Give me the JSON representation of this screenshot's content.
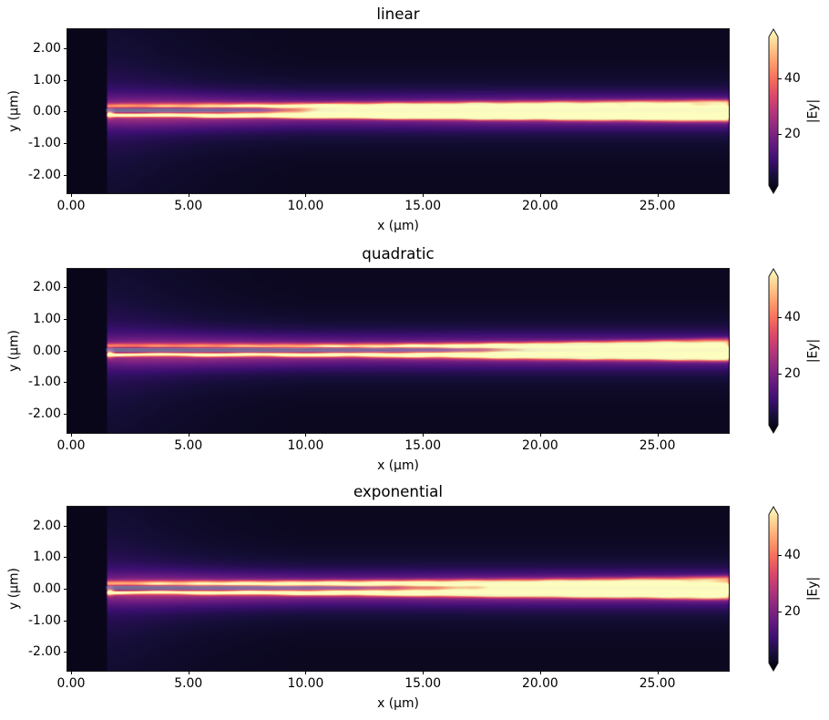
{
  "figure": {
    "background": "#ffffff",
    "kind": "matplotlib-style figure, 3 stacked heatmap subplots with individual colorbars"
  },
  "chart_data": {
    "type": "heatmap",
    "description": "Simulated optical field magnitude |Ey| in a tapered waveguide for three taper profiles; bright beam propagates along y=0 from a source at x=1.5 um; dark column left of the source; semi-transparent grey waveguide-core overlay around y=0.",
    "colormap": {
      "name": "magma",
      "stops": [
        [
          0.0,
          "#000004"
        ],
        [
          0.1,
          "#140e36"
        ],
        [
          0.2,
          "#3b0f70"
        ],
        [
          0.3,
          "#641a80"
        ],
        [
          0.4,
          "#8c2981"
        ],
        [
          0.5,
          "#b73779"
        ],
        [
          0.6,
          "#de4968"
        ],
        [
          0.7,
          "#f76f5c"
        ],
        [
          0.8,
          "#fe9f6d"
        ],
        [
          0.9,
          "#fece91"
        ],
        [
          1.0,
          "#fcfdbf"
        ]
      ]
    },
    "x_axis": {
      "label": "x (µm)",
      "range": [
        -0.1554,
        28.0446
      ],
      "ticks": [
        {
          "value": 0,
          "label": "0.00"
        },
        {
          "value": 5,
          "label": "5.00"
        },
        {
          "value": 10,
          "label": "10.00"
        },
        {
          "value": 15,
          "label": "15.00"
        },
        {
          "value": 20,
          "label": "20.00"
        },
        {
          "value": 25,
          "label": "25.00"
        }
      ]
    },
    "y_axis": {
      "label": "y (µm)",
      "range": [
        -2.6,
        2.6
      ],
      "ticks": [
        {
          "value": 2,
          "label": "2.00"
        },
        {
          "value": 1,
          "label": "1.00"
        },
        {
          "value": 0,
          "label": "0.00"
        },
        {
          "value": -1,
          "label": "-1.00"
        },
        {
          "value": -2,
          "label": "-2.00"
        }
      ]
    },
    "colorbar": {
      "label": "|Ey|",
      "vmin": 1.7,
      "vmax": 54.5,
      "extend": "both",
      "ticks": [
        {
          "value": 20,
          "label": "20"
        },
        {
          "value": 40,
          "label": "40"
        }
      ]
    },
    "field_common": {
      "source_x_um": 1.5,
      "background_level_left": 0.045,
      "background_level_right": 0.055,
      "overlay": {
        "color": "#b4b4c8",
        "y_center": 0.033,
        "y_halfwidth": 0.056,
        "edge": 0.02
      },
      "xs": [
        1.5,
        2.5,
        4,
        6,
        8,
        10,
        12,
        14,
        16,
        18,
        20,
        22,
        24,
        26,
        28
      ]
    },
    "subplots": [
      {
        "title": "linear",
        "field": {
          "bands": [
            {
              "name": "core",
              "y": -0.02,
              "sy": 0.12,
              "sy28": 0.2,
              "p": 3,
              "amp": [
                0.18,
                0.22,
                0.3,
                0.42,
                0.56,
                0.72,
                0.82,
                0.9,
                0.94,
                0.95,
                0.95,
                0.95,
                0.95,
                0.95,
                0.95
              ],
              "ripple": [
                1.7,
                0.07,
                0.0
              ]
            },
            {
              "name": "edge-top",
              "y": 0.11,
              "y1": 0.27,
              "ypow": 1,
              "sy": 0.026,
              "sy28": 0.045,
              "amp": [
                0.14,
                0.13,
                0.18,
                0.3,
                0.4,
                0.46,
                0.46,
                0.42,
                0.38,
                0.34,
                0.3,
                0.28,
                0.26,
                0.25,
                0.24
              ],
              "ripple": [
                1.7,
                0.1,
                0.4
              ],
              "wobble": [
                3.3,
                0.012,
                0.0
              ]
            },
            {
              "name": "band-top",
              "y": 0.155,
              "y1": 0.32,
              "ypow": 1,
              "sy": 0.055,
              "sy28": 0.06,
              "amp": [
                0.38,
                0.4,
                0.36,
                0.4,
                0.36,
                0.34,
                0.3,
                0.27,
                0.24,
                0.22,
                0.21,
                0.2,
                0.2,
                0.19,
                0.18
              ],
              "ripple": [
                1.9,
                0.09,
                0.9
              ]
            },
            {
              "name": "stripe-bottom",
              "y": -0.115,
              "y1": -0.27,
              "ypow": 1,
              "sy": 0.034,
              "sy28": 0.05,
              "amp": [
                0.75,
                0.72,
                0.65,
                0.68,
                0.6,
                0.55,
                0.5,
                0.44,
                0.4,
                0.35,
                0.31,
                0.28,
                0.26,
                0.25,
                0.24
              ],
              "ripple": [
                1.9,
                0.1,
                1.2
              ],
              "wobble": [
                3.9,
                0.012,
                1.0
              ]
            },
            {
              "name": "pedestal",
              "y": -0.02,
              "sy": 0.32,
              "amp": [
                0.28,
                0.31,
                0.32,
                0.31,
                0.29,
                0.27,
                0.28,
                0.29,
                0.31,
                0.32,
                0.33,
                0.33,
                0.33,
                0.33,
                0.33
              ]
            },
            {
              "name": "halo",
              "y": 0,
              "sy": 0.7,
              "amp": [
                0.08,
                0.09,
                0.1,
                0.1,
                0.1,
                0.1,
                0.1,
                0.1,
                0.1,
                0.1,
                0.1,
                0.1,
                0.1,
                0.1,
                0.1
              ]
            },
            {
              "name": "source-fan",
              "y": 0,
              "sy": 2.2,
              "amp": [
                0.07,
                0.06,
                0.04,
                0.02,
                0.008,
                0,
                0,
                0,
                0,
                0,
                0,
                0,
                0,
                0,
                0
              ]
            }
          ],
          "dip": {
            "y": 0.035,
            "sy": 0.065,
            "depth": [
              0.96,
              0.95,
              0.93,
              0.9,
              0.7,
              0.25,
              0.04,
              0,
              0,
              0,
              0,
              0,
              0,
              0,
              0
            ]
          },
          "overlay_alpha": [
            0.58,
            0.58,
            0.58,
            0.543,
            0.393,
            0.14,
            0.047,
            0.037,
            0.037,
            0.037,
            0.037,
            0.037,
            0.037,
            0.037,
            0.037
          ],
          "source_spot": {
            "x": 1.64,
            "sx": 0.12,
            "y": -0.07,
            "sy": 0.09,
            "amp": 0.5
          },
          "side_overlay": {
            "alpha": 0.13,
            "hw": 0.032,
            "edge": 0.02,
            "onset": [
              11,
              17
            ]
          }
        }
      },
      {
        "title": "quadratic",
        "field": {
          "bands": [
            {
              "name": "core",
              "y": -0.02,
              "sy": 0.12,
              "sy28": 0.2,
              "p": 3,
              "amp": [
                0.15,
                0.17,
                0.2,
                0.23,
                0.27,
                0.31,
                0.37,
                0.45,
                0.58,
                0.82,
                1.0,
                1.02,
                1.02,
                1.02,
                0.98
              ],
              "ripple": [
                1.8,
                0.07,
                0.3
              ]
            },
            {
              "name": "edge-top",
              "y": 0.11,
              "y1": 0.26,
              "ypow": 3.2,
              "sy": 0.026,
              "sy28": 0.045,
              "amp": [
                0.13,
                0.13,
                0.17,
                0.24,
                0.32,
                0.4,
                0.44,
                0.48,
                0.52,
                0.5,
                0.42,
                0.34,
                0.28,
                0.26,
                0.25
              ],
              "ripple": [
                1.6,
                0.1,
                0.8
              ],
              "wobble": [
                3.5,
                0.012,
                0.5
              ]
            },
            {
              "name": "band-top",
              "y": 0.155,
              "y1": 0.34,
              "ypow": 3.2,
              "sy": 0.055,
              "sy28": 0.06,
              "amp": [
                0.36,
                0.38,
                0.34,
                0.38,
                0.35,
                0.36,
                0.34,
                0.32,
                0.3,
                0.28,
                0.26,
                0.28,
                0.3,
                0.3,
                0.28
              ],
              "ripple": [
                1.8,
                0.09,
                1.5
              ]
            },
            {
              "name": "stripe-bottom",
              "y": -0.115,
              "y1": -0.26,
              "ypow": 3.2,
              "sy": 0.034,
              "sy28": 0.05,
              "amp": [
                0.68,
                0.7,
                0.62,
                0.68,
                0.62,
                0.66,
                0.62,
                0.66,
                0.64,
                0.6,
                0.52,
                0.42,
                0.33,
                0.3,
                0.28
              ],
              "ripple": [
                1.85,
                0.1,
                1.9
              ],
              "wobble": [
                4.0,
                0.012,
                1.6
              ]
            },
            {
              "name": "pedestal",
              "y": -0.02,
              "sy": 0.32,
              "amp": [
                0.24,
                0.28,
                0.3,
                0.31,
                0.3,
                0.29,
                0.27,
                0.28,
                0.29,
                0.3,
                0.3,
                0.3,
                0.3,
                0.3,
                0.3
              ]
            },
            {
              "name": "halo",
              "y": 0,
              "sy": 0.7,
              "amp": [
                0.08,
                0.09,
                0.1,
                0.1,
                0.1,
                0.1,
                0.1,
                0.1,
                0.1,
                0.1,
                0.1,
                0.1,
                0.1,
                0.1,
                0.1
              ]
            },
            {
              "name": "source-fan",
              "y": 0,
              "sy": 2.2,
              "amp": [
                0.07,
                0.06,
                0.04,
                0.02,
                0.008,
                0,
                0,
                0,
                0,
                0,
                0,
                0,
                0,
                0,
                0
              ]
            }
          ],
          "dip": {
            "y": 0.035,
            "sy": 0.065,
            "depth": [
              0.96,
              0.955,
              0.945,
              0.94,
              0.93,
              0.91,
              0.88,
              0.82,
              0.72,
              0.5,
              0.17,
              0.05,
              0.05,
              0.06,
              0.08
            ]
          },
          "overlay_alpha": [
            0.58,
            0.58,
            0.58,
            0.58,
            0.58,
            0.58,
            0.561,
            0.524,
            0.468,
            0.374,
            0.14,
            0.047,
            0.037,
            0.037,
            0.037
          ],
          "source_spot": {
            "x": 1.64,
            "sx": 0.12,
            "y": -0.07,
            "sy": 0.09,
            "amp": 0.5
          },
          "side_overlay": {
            "alpha": 0.13,
            "hw": 0.032,
            "edge": 0.02,
            "onset": [
              17,
              22
            ]
          }
        }
      },
      {
        "title": "exponential",
        "field": {
          "bands": [
            {
              "name": "core",
              "y": -0.02,
              "sy": 0.125,
              "sy28": 0.2,
              "p": 3,
              "amp": [
                0.17,
                0.21,
                0.27,
                0.35,
                0.44,
                0.52,
                0.6,
                0.68,
                0.76,
                0.84,
                0.9,
                0.93,
                0.94,
                0.94,
                0.94
              ],
              "ripple": [
                1.8,
                0.07,
                0.9
              ]
            },
            {
              "name": "edge-top",
              "y": 0.11,
              "y1": 0.28,
              "ypow": 2.0,
              "sy": 0.028,
              "sy28": 0.05,
              "amp": [
                0.14,
                0.14,
                0.2,
                0.3,
                0.4,
                0.48,
                0.52,
                0.48,
                0.42,
                0.36,
                0.31,
                0.28,
                0.26,
                0.25,
                0.24
              ],
              "ripple": [
                1.7,
                0.1,
                1.4
              ],
              "wobble": [
                3.4,
                0.012,
                0.9
              ]
            },
            {
              "name": "band-top",
              "y": 0.165,
              "y1": 0.35,
              "ypow": 2.0,
              "sy": 0.06,
              "sy28": 0.06,
              "amp": [
                0.4,
                0.45,
                0.48,
                0.52,
                0.54,
                0.52,
                0.47,
                0.4,
                0.34,
                0.29,
                0.25,
                0.24,
                0.24,
                0.24,
                0.23
              ],
              "ripple": [
                1.9,
                0.09,
                2.1
              ]
            },
            {
              "name": "stripe-bottom",
              "y": -0.115,
              "y1": -0.28,
              "ypow": 2.0,
              "sy": 0.034,
              "sy28": 0.05,
              "amp": [
                0.66,
                0.68,
                0.62,
                0.68,
                0.63,
                0.66,
                0.62,
                0.58,
                0.53,
                0.47,
                0.41,
                0.35,
                0.31,
                0.28,
                0.26
              ],
              "ripple": [
                1.95,
                0.1,
                2.3
              ],
              "wobble": [
                4.1,
                0.012,
                2.0
              ]
            },
            {
              "name": "pedestal",
              "y": -0.02,
              "sy": 0.32,
              "amp": [
                0.26,
                0.3,
                0.31,
                0.31,
                0.3,
                0.29,
                0.28,
                0.29,
                0.31,
                0.32,
                0.33,
                0.33,
                0.33,
                0.33,
                0.33
              ]
            },
            {
              "name": "halo",
              "y": 0,
              "sy": 0.7,
              "amp": [
                0.08,
                0.09,
                0.1,
                0.1,
                0.1,
                0.1,
                0.1,
                0.1,
                0.1,
                0.1,
                0.1,
                0.1,
                0.1,
                0.1,
                0.1
              ]
            },
            {
              "name": "source-fan",
              "y": 0,
              "sy": 2.2,
              "amp": [
                0.07,
                0.06,
                0.04,
                0.02,
                0.008,
                0,
                0,
                0,
                0,
                0,
                0,
                0,
                0,
                0,
                0
              ]
            }
          ],
          "dip": {
            "y": 0.03,
            "sy": 0.065,
            "depth": [
              0.96,
              0.945,
              0.93,
              0.9,
              0.84,
              0.76,
              0.64,
              0.5,
              0.36,
              0.24,
              0.12,
              0.04,
              0,
              0,
              0
            ]
          },
          "overlay_alpha": [
            0.58,
            0.58,
            0.58,
            0.58,
            0.561,
            0.487,
            0.355,
            0.225,
            0.112,
            0.047,
            0.037,
            0.037,
            0.037,
            0.037,
            0.037
          ],
          "source_spot": {
            "x": 1.64,
            "sx": 0.12,
            "y": -0.07,
            "sy": 0.09,
            "amp": 0.5
          },
          "side_overlay": {
            "alpha": 0.13,
            "hw": 0.032,
            "edge": 0.02,
            "onset": [
              13,
              19
            ]
          }
        }
      }
    ]
  }
}
